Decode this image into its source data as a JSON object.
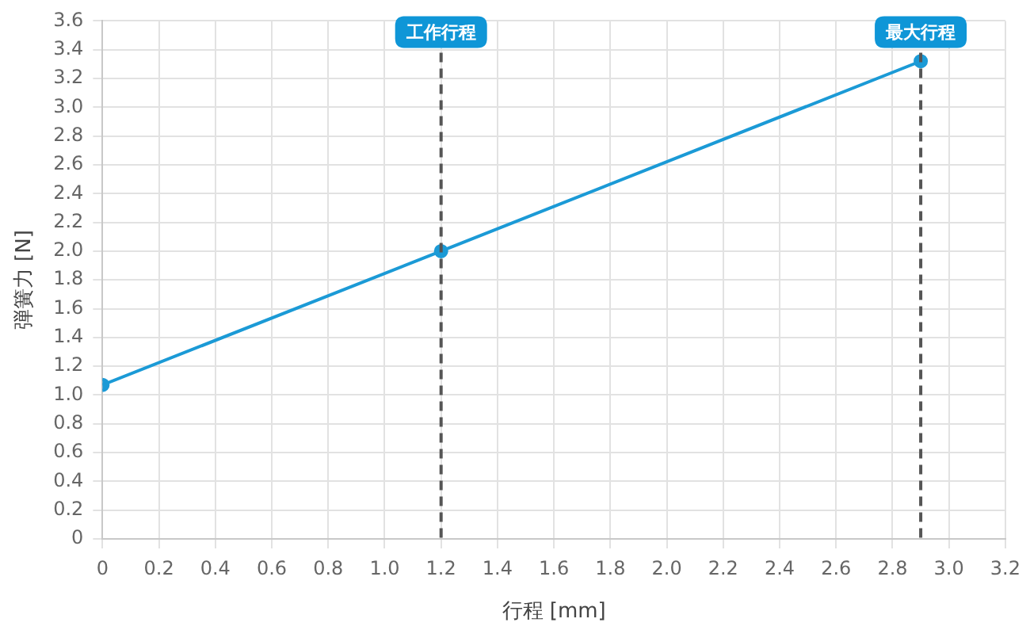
{
  "chart_data": {
    "type": "line",
    "xlabel": "行程 [mm]",
    "ylabel": "弾簧力 [N]",
    "x": [
      0,
      1.2,
      2.9
    ],
    "series": [
      {
        "color": "#1b9ad6",
        "values": [
          1.07,
          2.0,
          3.32
        ]
      }
    ],
    "xlim": [
      0,
      3.2
    ],
    "xticks": [
      0,
      0.2,
      0.4,
      0.6,
      0.8,
      {
        "value": 1,
        "label": "1.0"
      },
      1.2,
      1.4,
      1.6,
      1.8,
      {
        "value": 2,
        "label": "2.0"
      },
      2.2,
      2.4,
      2.6,
      2.8,
      {
        "value": 3,
        "label": "3.0"
      },
      3.2
    ],
    "ylim": [
      0,
      3.6
    ],
    "yticks": [
      0,
      0.2,
      0.4,
      0.6,
      0.8,
      {
        "value": 1,
        "label": "1.0"
      },
      1.2,
      1.4,
      1.6,
      1.8,
      {
        "value": 2,
        "label": "2.0"
      },
      2.2,
      2.4,
      2.6,
      2.8,
      {
        "value": 3,
        "label": "3.0"
      },
      3.2,
      3.4,
      3.6
    ],
    "ref_lines": [
      {
        "axis": "x",
        "value": 1.2,
        "label": "工作行程",
        "color": "#555555",
        "line_style": "dashed"
      },
      {
        "axis": "x",
        "value": 2.9,
        "label": "最大行程",
        "color": "#555555",
        "line_style": "dashed"
      }
    ],
    "grid": true,
    "legend": false,
    "marker": "circle",
    "line_style": "solid"
  }
}
